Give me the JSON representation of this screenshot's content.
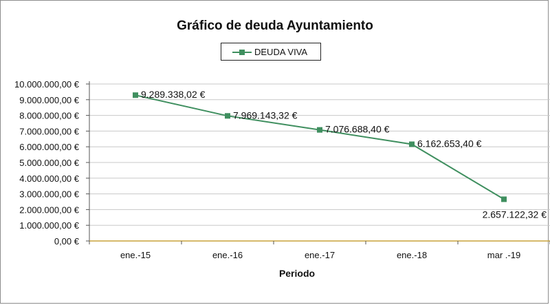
{
  "chart_data": {
    "type": "line",
    "title": "Gráfico de deuda Ayuntamiento",
    "xlabel": "Periodo",
    "ylabel": "",
    "categories": [
      "ene.-15",
      "ene.-16",
      "ene.-17",
      "ene.-18",
      "mar .-19"
    ],
    "series": [
      {
        "name": "DEUDA VIVA",
        "values": [
          9289338.02,
          7969143.32,
          7076688.4,
          6162653.4,
          2657122.32
        ],
        "labels": [
          "9.289.338,02 €",
          "7.969.143,32 €",
          "7.076.688,40 €",
          "6.162.653,40 €",
          "2.657.122,32 €"
        ],
        "color": "#3f8f5f"
      }
    ],
    "ylim": [
      0,
      10000000
    ],
    "ytick_labels": [
      "0,00 €",
      "1.000.000,00 €",
      "2.000.000,00 €",
      "3.000.000,00 €",
      "4.000.000,00 €",
      "5.000.000,00 €",
      "6.000.000,00 €",
      "7.000.000,00 €",
      "8.000.000,00 €",
      "9.000.000,00 €",
      "10.000.000,00 €"
    ],
    "grid": true,
    "legend_position": "top-center"
  },
  "colors": {
    "line": "#3f8f5f",
    "grid": "#c8c8c8",
    "axis": "#555555",
    "baseline": "#c8a23a"
  }
}
